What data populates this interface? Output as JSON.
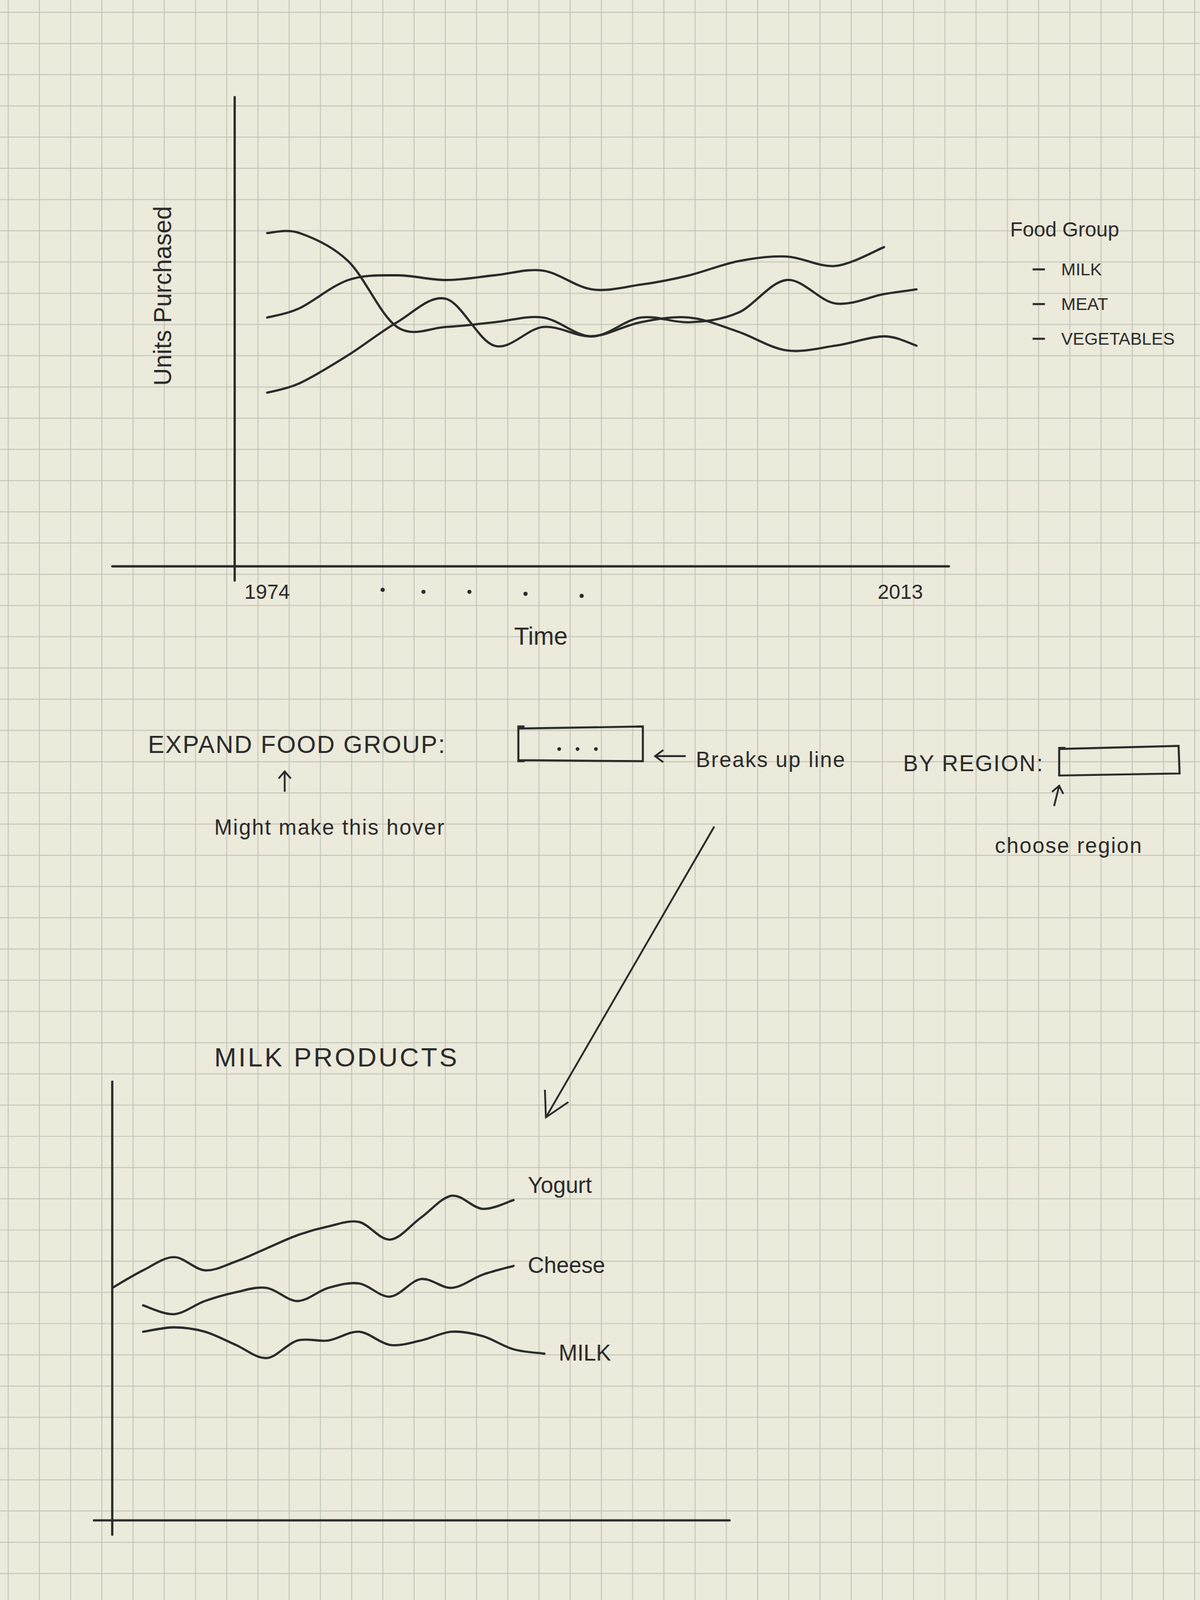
{
  "chart_data": [
    {
      "type": "line",
      "x_label": "Time",
      "y_label": "Units Purchased",
      "x": [
        1974,
        1976,
        1979,
        1982,
        1985,
        1988,
        1991,
        1994,
        1997,
        2000,
        2003,
        2006,
        2009,
        2012,
        2014
      ],
      "xlim": [
        1972,
        2016
      ],
      "xticks": [
        1974,
        2013
      ],
      "ylim": [
        0,
        100
      ],
      "yticks": [],
      "tick_labels": "x",
      "grid": false,
      "legend": "right",
      "legend_title": "Food Group",
      "series": [
        {
          "name": "MILK",
          "color": "#2a2a2a",
          "values": [
            71,
            71,
            65,
            51,
            51,
            52,
            53,
            49,
            53,
            52,
            54,
            61,
            56,
            58,
            59
          ]
        },
        {
          "name": "MEAT",
          "color": "#2a2a2a",
          "values": [
            53,
            55,
            61,
            62,
            61,
            62,
            63,
            59,
            60,
            62,
            65,
            66,
            64,
            68,
            null
          ]
        },
        {
          "name": "VEGETABLES",
          "color": "#2a2a2a",
          "values": [
            37,
            39,
            45,
            52,
            57,
            47,
            51,
            49,
            52,
            53,
            50,
            46,
            47,
            49,
            47
          ]
        }
      ],
      "annotations": [
        "EXPAND FOOD GROUP:",
        "Breaks up line",
        "Might make this hover",
        "BY REGION:",
        "choose region"
      ]
    },
    {
      "type": "line",
      "title": "MILK PRODUCTS",
      "x": [
        0,
        1,
        2,
        3,
        4,
        5,
        6,
        7,
        8,
        9,
        10,
        11,
        12,
        13,
        14
      ],
      "xlim": [
        0,
        20
      ],
      "xticks": [],
      "ylim": [
        0,
        100
      ],
      "yticks": [],
      "tick_labels": false,
      "grid": false,
      "series": [
        {
          "name": "Yogurt",
          "color": "#2a2a2a",
          "values": [
            53,
            57,
            60,
            57,
            59,
            62,
            65,
            67,
            68,
            64,
            69,
            74,
            71,
            73,
            null
          ]
        },
        {
          "name": "Cheese",
          "color": "#2a2a2a",
          "values": [
            null,
            49,
            47,
            50,
            52,
            53,
            50,
            53,
            54,
            51,
            55,
            53,
            56,
            58,
            null
          ]
        },
        {
          "name": "MILK",
          "color": "#2a2a2a",
          "values": [
            null,
            43,
            44,
            43,
            40,
            37,
            41,
            41,
            43,
            40,
            41,
            43,
            42,
            39,
            38
          ]
        }
      ]
    }
  ]
}
